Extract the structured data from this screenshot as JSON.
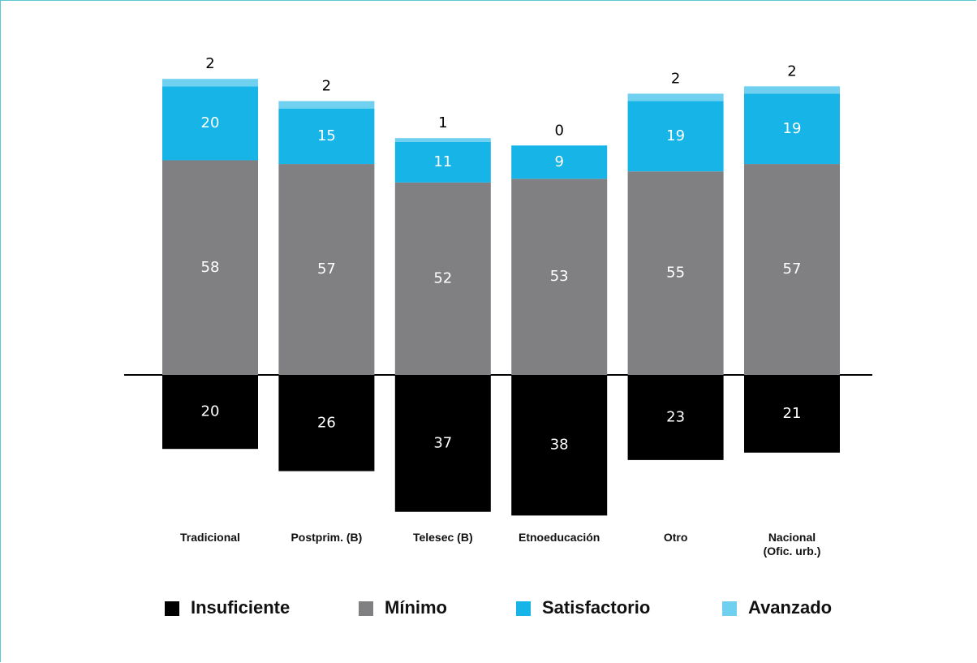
{
  "chart_data": {
    "type": "bar",
    "stacked": true,
    "categories": [
      "Tradicional",
      "Postprim. (B)",
      "Telesec (B)",
      "Etnoeducación",
      "Otro",
      "Nacional\n(Ofic. urb.)"
    ],
    "series": [
      {
        "name": "Insuficiente",
        "color": "#000000",
        "values": [
          -20,
          -26,
          -37,
          -38,
          -23,
          -21
        ],
        "value_labels": [
          "20",
          "26",
          "37",
          "38",
          "23",
          "21"
        ]
      },
      {
        "name": "Mínimo",
        "color": "#808083",
        "values": [
          58,
          57,
          52,
          53,
          55,
          57
        ]
      },
      {
        "name": "Satisfactorio",
        "color": "#17b4e8",
        "values": [
          20,
          15,
          11,
          9,
          19,
          19
        ]
      },
      {
        "name": "Avanzado",
        "color": "#6fd0f0",
        "values": [
          2,
          2,
          1,
          0,
          2,
          2
        ]
      }
    ]
  }
}
